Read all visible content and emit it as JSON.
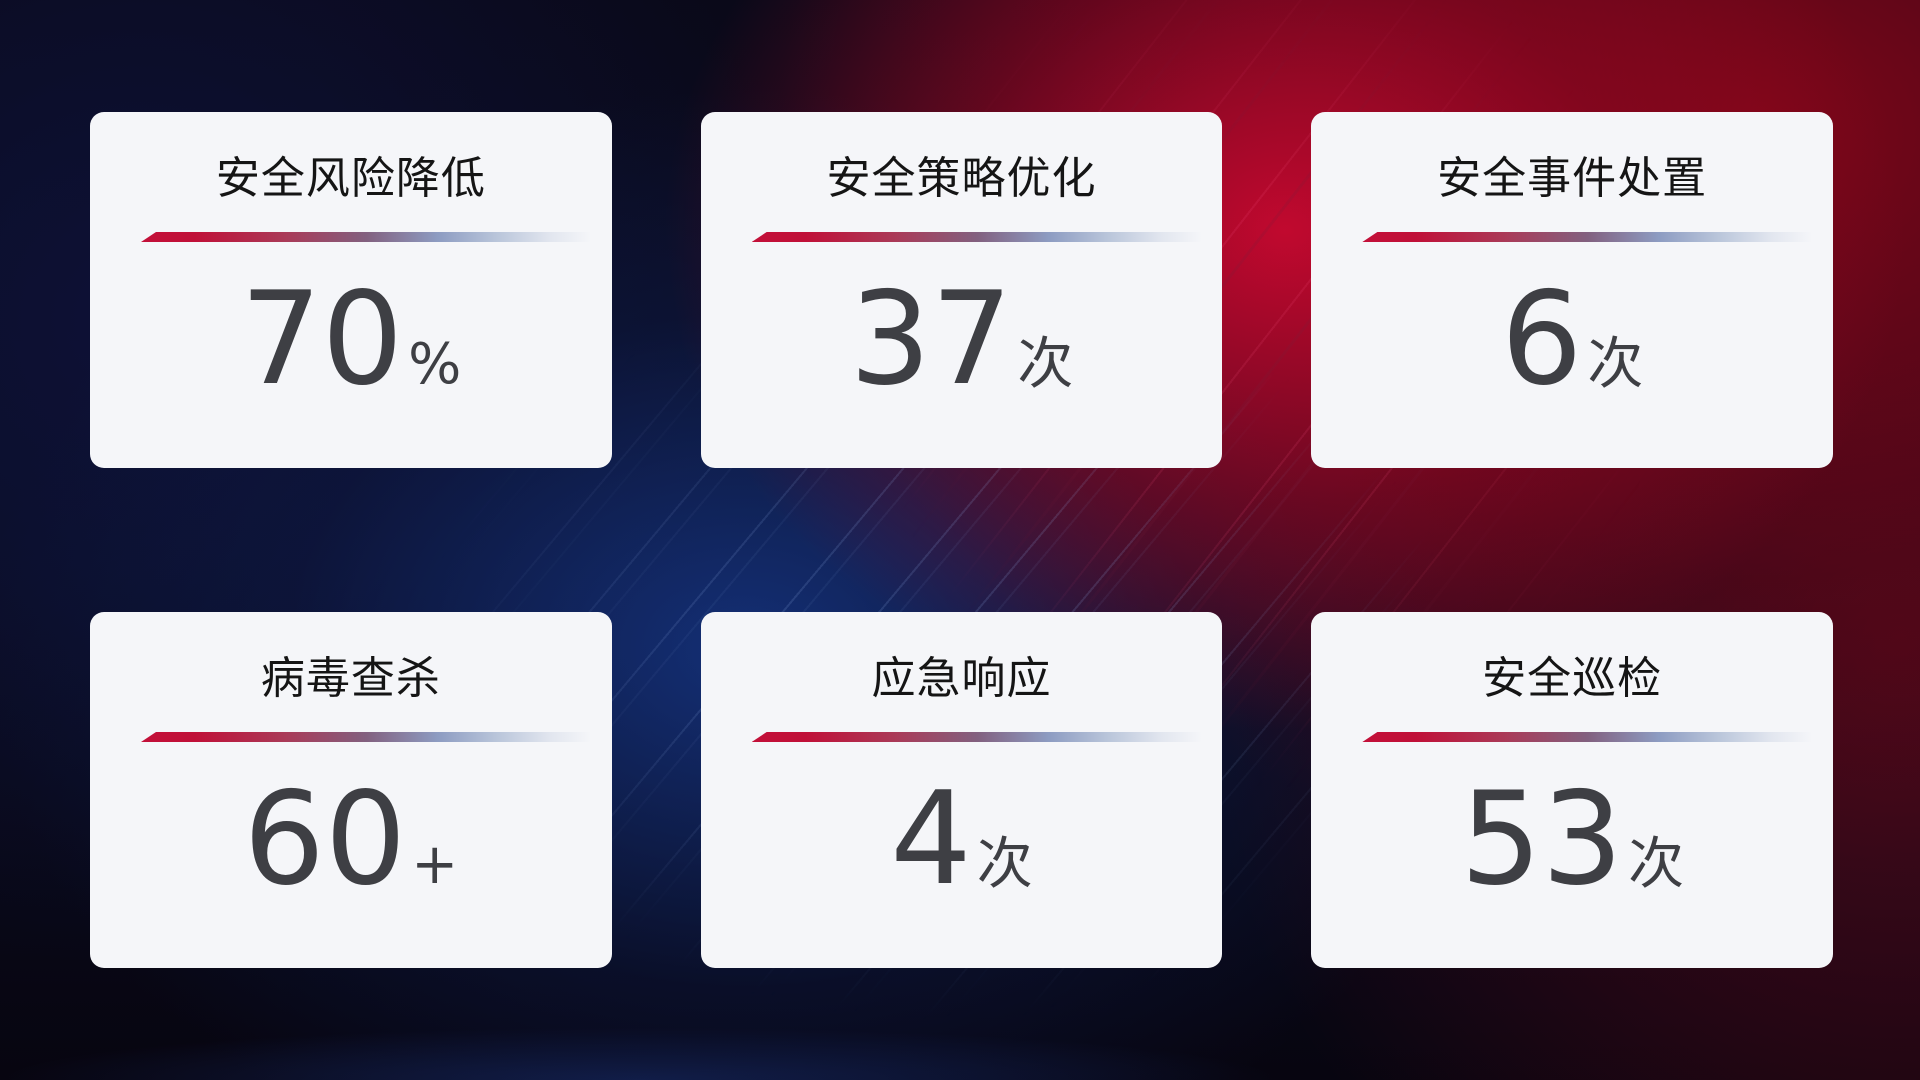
{
  "theme": {
    "card_background": "#f5f6f9",
    "title_color": "#151515",
    "value_color": "#3e3f44",
    "divider_red": "#c31039",
    "divider_slate": "#82607f",
    "divider_blue": "#8d9cc2",
    "background_red_glow": "#c00930",
    "background_blue_glow": "#15337f",
    "background_dark": "#0a0d22"
  },
  "cards": [
    {
      "title": "安全风险降低",
      "value": "70",
      "unit": "%"
    },
    {
      "title": "安全策略优化",
      "value": "37",
      "unit": "次"
    },
    {
      "title": "安全事件处置",
      "value": "6",
      "unit": "次"
    },
    {
      "title": "病毒查杀",
      "value": "60",
      "unit": "+"
    },
    {
      "title": "应急响应",
      "value": "4",
      "unit": "次"
    },
    {
      "title": "安全巡检",
      "value": "53",
      "unit": "次"
    }
  ]
}
